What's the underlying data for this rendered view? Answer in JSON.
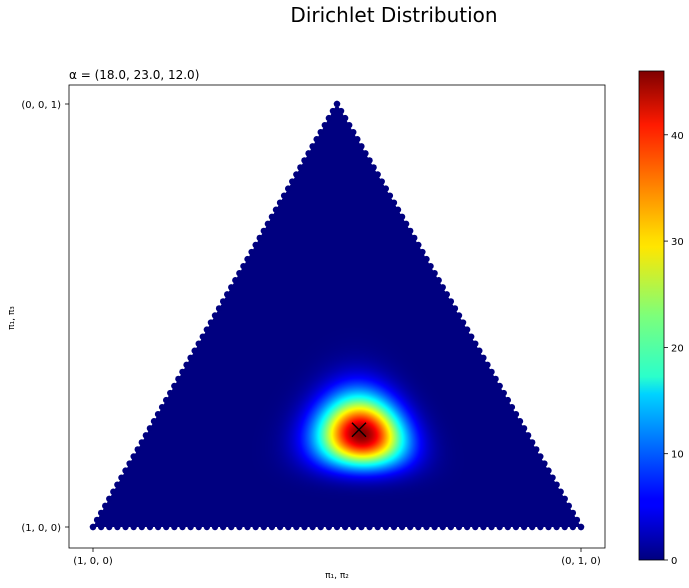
{
  "chart_data": {
    "type": "heatmap",
    "title": "Dirichlet Distribution",
    "subtitle": "α = (18.0, 23.0, 12.0)",
    "alpha": [
      18.0,
      23.0,
      12.0
    ],
    "xlabel": "π₁, π₂",
    "ylabel": "π₁, π₃",
    "x_tick_labels": [
      "(1, 0, 0)",
      "(0, 1, 0)"
    ],
    "y_tick_labels": [
      "(0, 0, 1)",
      "(1, 0, 0)"
    ],
    "colormap": "jet",
    "colorbar": {
      "min": 0,
      "max": 46,
      "ticks": [
        0,
        10,
        20,
        30,
        40
      ]
    },
    "marker": {
      "shape": "x",
      "pi": [
        0.34,
        0.43,
        0.23
      ]
    },
    "grid": false
  },
  "colors": {
    "low": "#00007f",
    "high": "#7f0000",
    "marker": "#000000"
  }
}
